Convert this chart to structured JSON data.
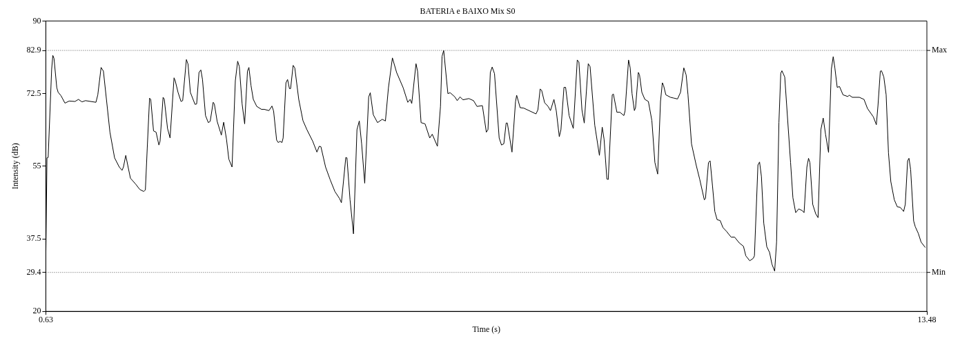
{
  "chart_data": {
    "type": "line",
    "title": "BATERIA e BAIXO Mix S0",
    "xlabel": "Time (s)",
    "ylabel": "Intensity (dB)",
    "xlim": [
      0.63,
      13.48
    ],
    "xticks": [
      0.63,
      13.48
    ],
    "ylim": [
      20,
      90
    ],
    "yticks": [
      20,
      29.4,
      37.5,
      55,
      72.5,
      82.9,
      90
    ],
    "grid": false,
    "legend": false,
    "marker": "none",
    "line_style": "solid",
    "ref_lines": [
      {
        "axis": "y",
        "value": 82.9,
        "label": "Max",
        "line_style": "dotted",
        "color": "#555555"
      },
      {
        "axis": "y",
        "value": 29.4,
        "label": "Min",
        "line_style": "dotted",
        "color": "#555555"
      }
    ],
    "series": [
      {
        "color": "#000000",
        "x": [
          0.63,
          0.647,
          0.664,
          0.715,
          0.732,
          0.749,
          0.79,
          0.81,
          0.851,
          0.909,
          0.97,
          1.055,
          1.106,
          1.157,
          1.208,
          1.361,
          1.388,
          1.436,
          1.47,
          1.514,
          1.565,
          1.633,
          1.701,
          1.742,
          1.762,
          1.796,
          1.83,
          1.864,
          1.939,
          2.0,
          2.058,
          2.082,
          2.109,
          2.143,
          2.16,
          2.201,
          2.238,
          2.279,
          2.296,
          2.34,
          2.357,
          2.405,
          2.442,
          2.5,
          2.517,
          2.558,
          2.602,
          2.626,
          2.68,
          2.704,
          2.738,
          2.806,
          2.83,
          2.864,
          2.891,
          2.915,
          2.959,
          3.0,
          3.027,
          3.071,
          3.088,
          3.129,
          3.19,
          3.224,
          3.265,
          3.299,
          3.346,
          3.394,
          3.428,
          3.452,
          3.493,
          3.53,
          3.571,
          3.592,
          3.622,
          3.656,
          3.707,
          3.775,
          3.816,
          3.884,
          3.928,
          3.952,
          3.996,
          4.02,
          4.047,
          4.074,
          4.091,
          4.132,
          4.156,
          4.183,
          4.2,
          4.237,
          4.261,
          4.319,
          4.38,
          4.438,
          4.523,
          4.584,
          4.618,
          4.642,
          4.71,
          4.778,
          4.846,
          4.914,
          4.941,
          5.005,
          5.022,
          5.067,
          5.117,
          5.168,
          5.202,
          5.236,
          5.281,
          5.339,
          5.362,
          5.406,
          5.468,
          5.536,
          5.583,
          5.627,
          5.685,
          5.746,
          5.842,
          5.909,
          5.944,
          5.967,
          6.029,
          6.052,
          6.103,
          6.161,
          6.229,
          6.266,
          6.341,
          6.386,
          6.409,
          6.433,
          6.494,
          6.528,
          6.596,
          6.63,
          6.671,
          6.715,
          6.8,
          6.868,
          6.919,
          6.997,
          7.055,
          7.079,
          7.113,
          7.14,
          7.174,
          7.242,
          7.276,
          7.31,
          7.344,
          7.361,
          7.429,
          7.48,
          7.497,
          7.548,
          7.6,
          7.779,
          7.807,
          7.84,
          7.861,
          7.905,
          7.956,
          7.99,
          8.041,
          8.075,
          8.119,
          8.143,
          8.187,
          8.211,
          8.262,
          8.323,
          8.381,
          8.405,
          8.449,
          8.483,
          8.541,
          8.568,
          8.636,
          8.704,
          8.745,
          8.772,
          8.813,
          8.833,
          8.891,
          8.908,
          8.959,
          9.003,
          9.061,
          9.078,
          9.129,
          9.153,
          9.18,
          9.214,
          9.231,
          9.272,
          9.289,
          9.323,
          9.367,
          9.418,
          9.469,
          9.513,
          9.554,
          9.595,
          9.622,
          9.639,
          9.673,
          9.741,
          9.792,
          9.843,
          9.887,
          9.935,
          9.969,
          9.996,
          10.047,
          10.115,
          10.166,
          10.234,
          10.251,
          10.295,
          10.319,
          10.353,
          10.387,
          10.421,
          10.465,
          10.506,
          10.557,
          10.625,
          10.676,
          10.744,
          10.805,
          10.839,
          10.897,
          10.948,
          10.965,
          11.016,
          11.04,
          11.067,
          11.101,
          11.145,
          11.186,
          11.22,
          11.26,
          11.288,
          11.322,
          11.349,
          11.366,
          11.407,
          11.492,
          11.526,
          11.567,
          11.611,
          11.662,
          11.689,
          11.73,
          11.754,
          11.774,
          11.815,
          11.859,
          11.893,
          11.934,
          11.968,
          12.002,
          12.046,
          12.087,
          12.114,
          12.138,
          12.172,
          12.206,
          12.257,
          12.325,
          12.349,
          12.393,
          12.495,
          12.563,
          12.614,
          12.699,
          12.743,
          12.767,
          12.801,
          12.818,
          12.852,
          12.886,
          12.92,
          12.954,
          13.005,
          13.049,
          13.09,
          13.141,
          13.165,
          13.199,
          13.219,
          13.243,
          13.287,
          13.311,
          13.355,
          13.396,
          13.457
        ],
        "values": [
          32.8,
          57.0,
          57.1,
          78.4,
          81.7,
          81.0,
          73.9,
          72.8,
          72.0,
          70.2,
          70.7,
          70.6,
          71.1,
          70.5,
          70.8,
          70.4,
          72.2,
          78.8,
          77.9,
          71.1,
          63.2,
          57.0,
          54.8,
          54.0,
          54.8,
          57.6,
          54.8,
          52.1,
          50.7,
          49.4,
          48.9,
          49.3,
          59.3,
          71.4,
          71.1,
          63.5,
          63.2,
          60.1,
          61.0,
          71.6,
          71.2,
          64.1,
          61.8,
          76.3,
          75.6,
          72.8,
          70.6,
          70.8,
          80.7,
          79.6,
          72.8,
          69.9,
          70.0,
          77.6,
          78.2,
          75.9,
          67.2,
          65.5,
          65.8,
          70.4,
          70.0,
          65.8,
          62.5,
          65.6,
          61.5,
          56.7,
          54.8,
          75.6,
          80.3,
          79.0,
          70.0,
          65.2,
          77.9,
          78.8,
          74.5,
          71.1,
          69.4,
          68.7,
          68.7,
          68.4,
          69.5,
          68.3,
          61.3,
          60.7,
          61.0,
          60.7,
          61.8,
          75.1,
          75.9,
          73.7,
          73.7,
          79.3,
          78.7,
          71.1,
          66.0,
          63.8,
          61.0,
          58.4,
          59.8,
          59.7,
          54.8,
          51.7,
          48.9,
          47.2,
          46.2,
          57.1,
          57.0,
          46.9,
          38.7,
          63.8,
          65.9,
          60.4,
          50.9,
          71.7,
          72.7,
          67.4,
          65.5,
          66.3,
          65.9,
          73.9,
          81.1,
          77.6,
          73.9,
          70.4,
          71.1,
          70.1,
          79.7,
          77.9,
          65.5,
          65.2,
          61.8,
          62.7,
          59.8,
          69.4,
          81.5,
          82.9,
          72.5,
          72.7,
          71.7,
          70.8,
          71.7,
          71.0,
          71.3,
          70.8,
          69.4,
          69.6,
          63.2,
          63.8,
          77.6,
          78.9,
          77.3,
          61.8,
          60.1,
          60.4,
          65.4,
          65.4,
          58.4,
          70.5,
          72.1,
          69.1,
          69.0,
          67.6,
          68.6,
          73.6,
          73.3,
          70.3,
          69.4,
          68.4,
          71.1,
          68.3,
          62.1,
          63.8,
          74.0,
          74.0,
          67.2,
          64.1,
          80.6,
          80.1,
          68.6,
          65.4,
          79.7,
          79.0,
          64.9,
          57.6,
          64.4,
          61.5,
          51.9,
          51.8,
          72.2,
          72.4,
          68.0,
          68.0,
          67.2,
          68.3,
          80.6,
          78.7,
          72.5,
          68.4,
          69.1,
          77.6,
          77.0,
          72.8,
          71.1,
          70.6,
          66.0,
          55.9,
          53.1,
          70.6,
          75.1,
          74.5,
          72.2,
          71.6,
          71.4,
          71.2,
          72.8,
          78.7,
          77.0,
          72.2,
          60.4,
          55.3,
          51.9,
          46.9,
          47.2,
          55.9,
          56.3,
          50.3,
          44.1,
          42.1,
          41.9,
          40.2,
          39.3,
          37.9,
          37.9,
          36.5,
          35.7,
          33.4,
          32.2,
          32.8,
          33.4,
          55.3,
          56.0,
          52.5,
          41.3,
          35.6,
          34.2,
          31.4,
          29.7,
          36.7,
          65.5,
          77.4,
          78.0,
          76.5,
          55.9,
          47.4,
          43.8,
          44.7,
          44.3,
          43.8,
          54.8,
          56.9,
          55.9,
          45.8,
          43.5,
          42.6,
          63.8,
          66.6,
          62.7,
          58.3,
          78.4,
          81.4,
          78.7,
          74.0,
          74.2,
          72.2,
          71.8,
          72.1,
          71.6,
          71.6,
          71.1,
          68.9,
          66.9,
          65.0,
          69.6,
          77.9,
          78.0,
          76.5,
          72.2,
          58.2,
          51.3,
          46.9,
          45.2,
          45.1,
          44.1,
          45.8,
          56.3,
          56.9,
          54.2,
          41.8,
          40.4,
          38.8,
          36.7,
          35.4
        ]
      }
    ]
  }
}
